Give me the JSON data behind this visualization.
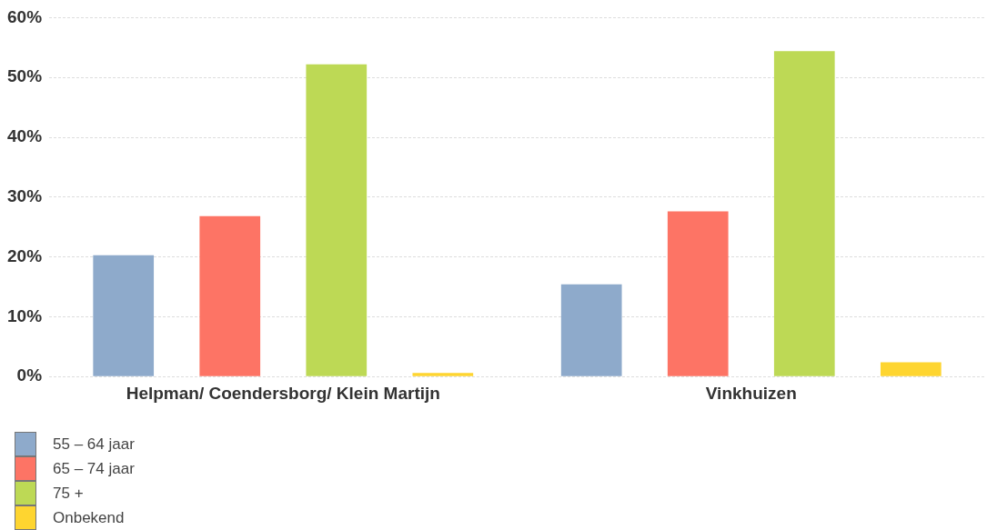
{
  "chart_data": {
    "type": "bar",
    "categories": [
      "Helpman/ Coendersborg/ Klein Martijn",
      "Vinkhuizen"
    ],
    "series": [
      {
        "name": "55 – 64 jaar",
        "color": "#8eaacb",
        "values": [
          20.3,
          15.4
        ]
      },
      {
        "name": "65 – 74 jaar",
        "color": "#fd7465",
        "values": [
          26.8,
          27.6
        ]
      },
      {
        "name": "75 +",
        "color": "#bdd955",
        "values": [
          52.2,
          54.4
        ]
      },
      {
        "name": "Onbekend",
        "color": "#fed530",
        "values": [
          0.6,
          2.4
        ]
      }
    ],
    "ylim": [
      0,
      60
    ],
    "yticks": [
      {
        "value": 0,
        "label": "0%"
      },
      {
        "value": 10,
        "label": "10%"
      },
      {
        "value": 20,
        "label": "20%"
      },
      {
        "value": 30,
        "label": "30%"
      },
      {
        "value": 40,
        "label": "40%"
      },
      {
        "value": 50,
        "label": "50%"
      },
      {
        "value": 60,
        "label": "60%"
      }
    ],
    "grid": "y",
    "legend": "bottom left"
  }
}
